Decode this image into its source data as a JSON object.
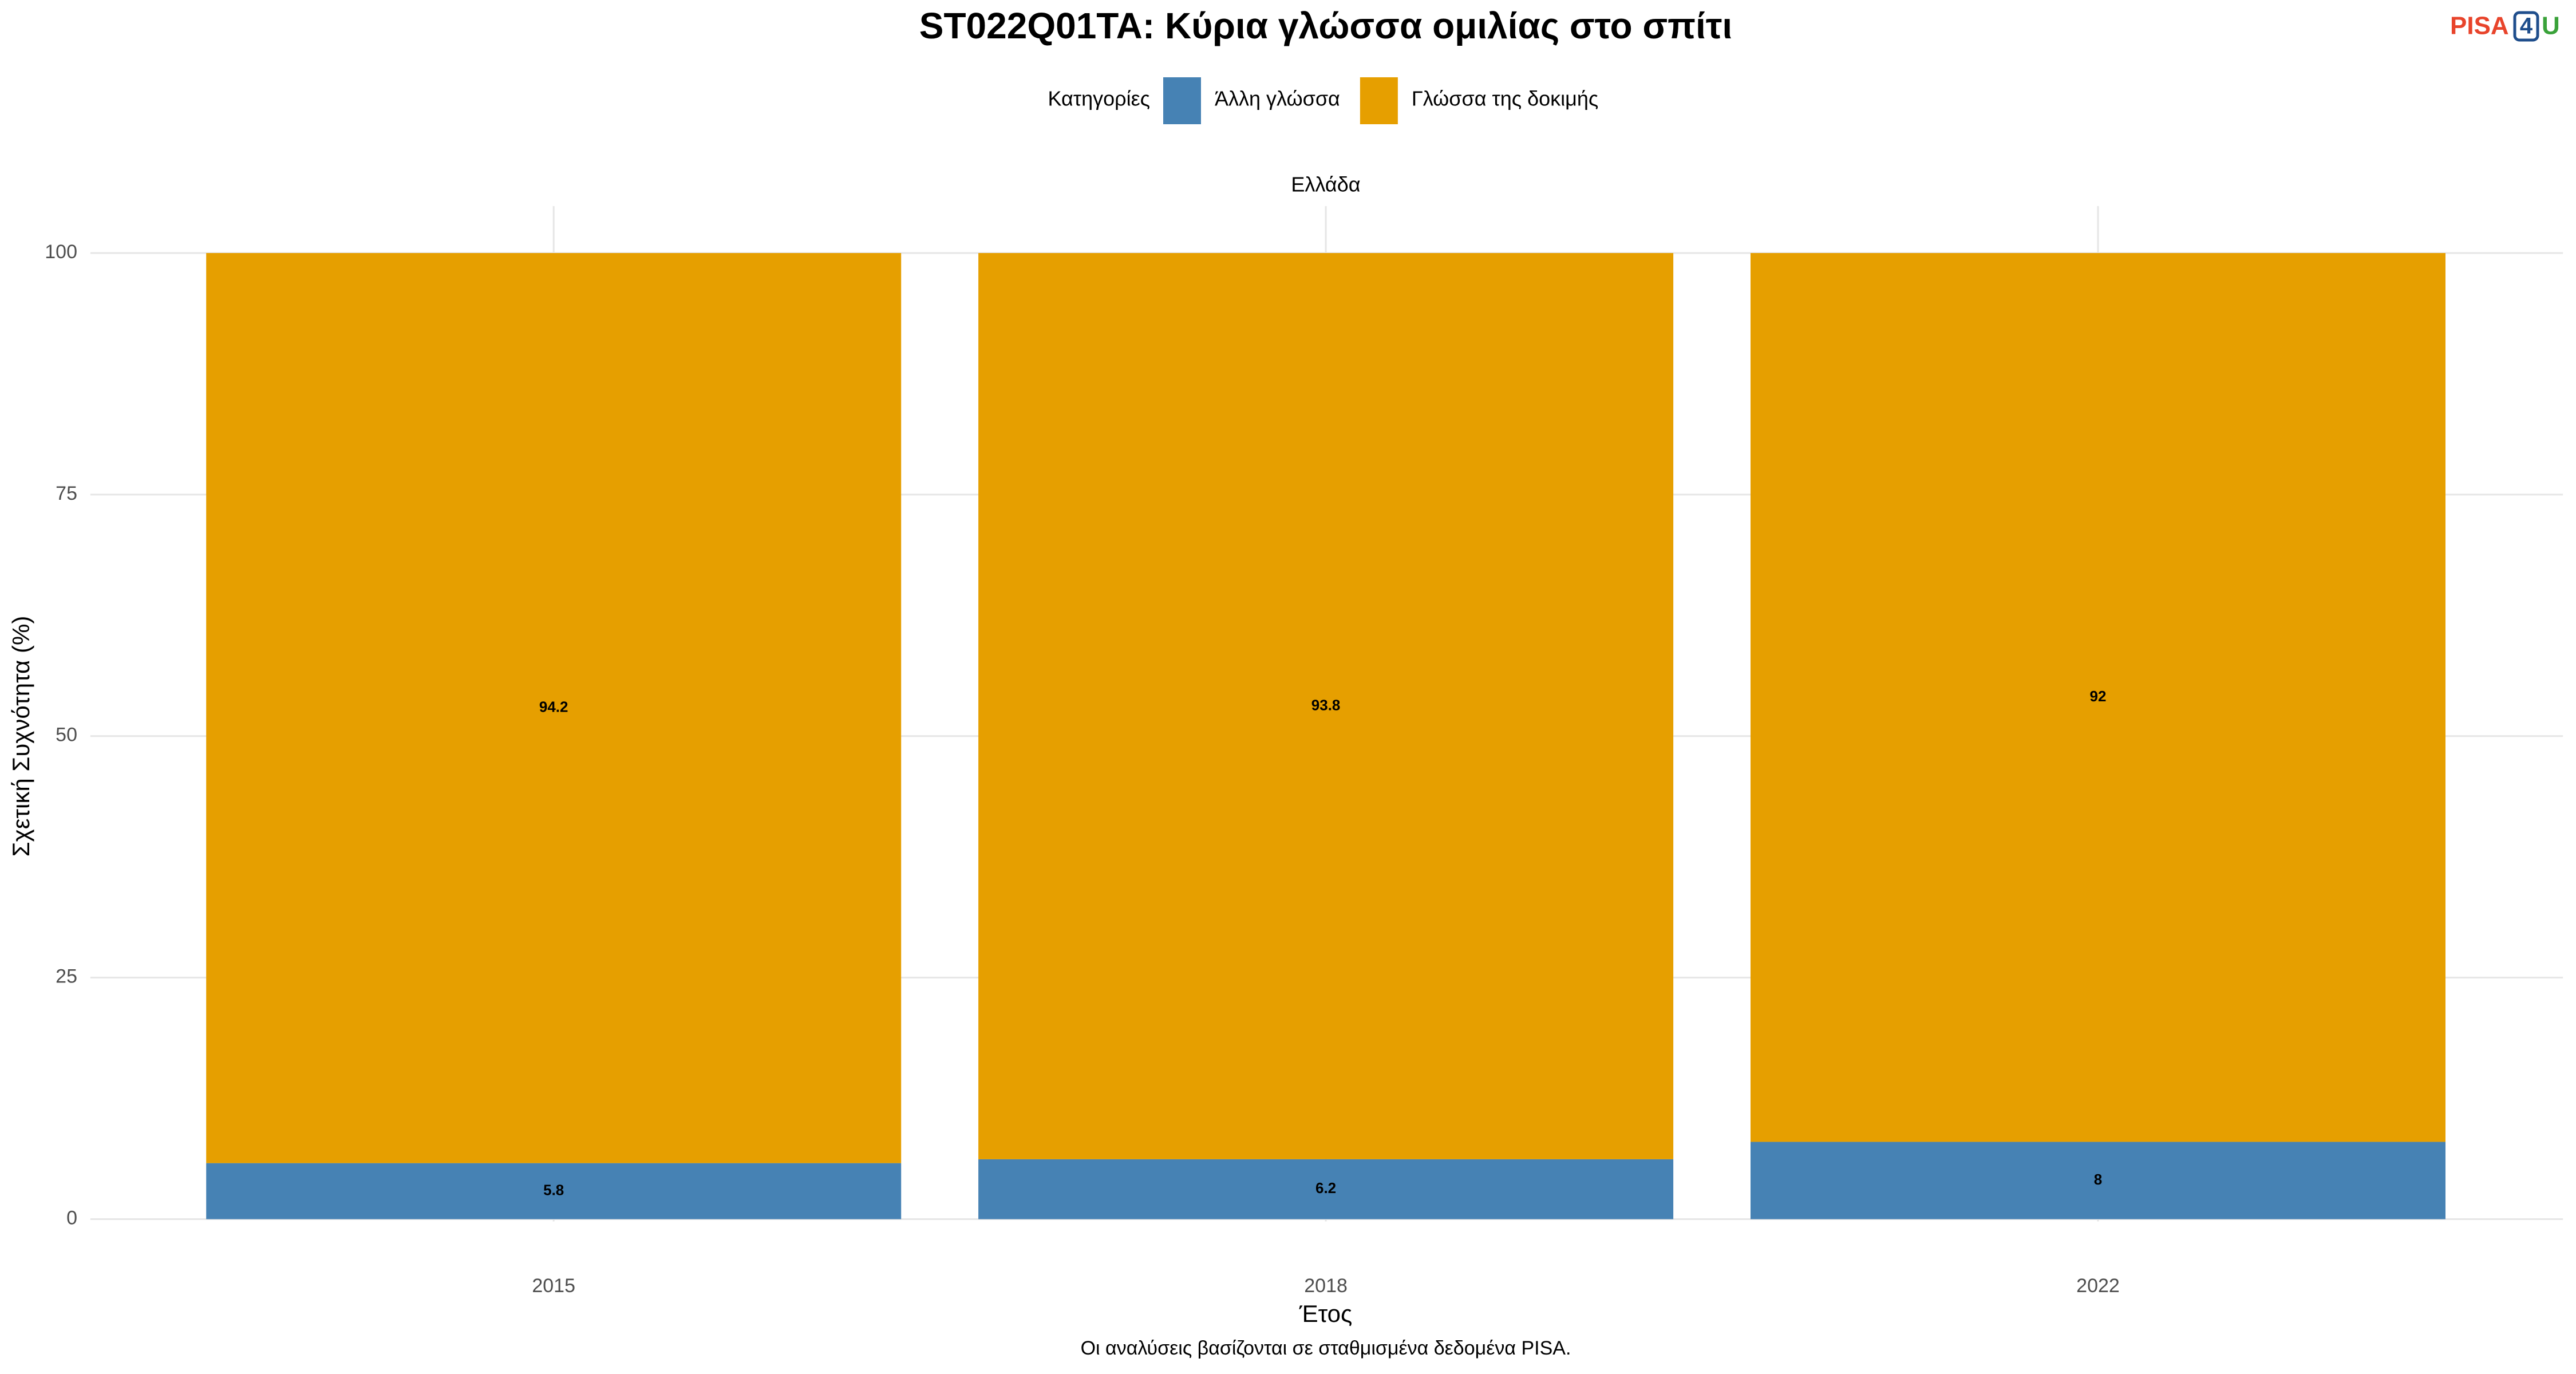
{
  "chart_data": {
    "type": "stacked_bar",
    "title": "ST022Q01TA: Κύρια γλώσσα ομιλίας στο σπίτι",
    "legend_title": "Κατηγορίες",
    "facet": "Ελλάδα",
    "x_label": "Έτος",
    "y_label": "Σχετική Συχνότητα (%)",
    "caption": "Οι αναλύσεις βασίζονται σε σταθμισμένα δεδομένα PISA.",
    "logo": [
      "PISA",
      "4",
      "U"
    ],
    "categories": [
      "2015",
      "2018",
      "2022"
    ],
    "series": [
      {
        "name": "Άλλη γλώσσα",
        "color": "#4682b4",
        "values": [
          5.8,
          6.2,
          8
        ]
      },
      {
        "name": "Γλώσσα της δοκιμής",
        "color": "#e69f00",
        "values": [
          94.2,
          93.8,
          92
        ]
      }
    ],
    "ylim": [
      0,
      100
    ],
    "yticks": [
      0,
      25,
      50,
      75,
      100
    ],
    "grid": true
  }
}
